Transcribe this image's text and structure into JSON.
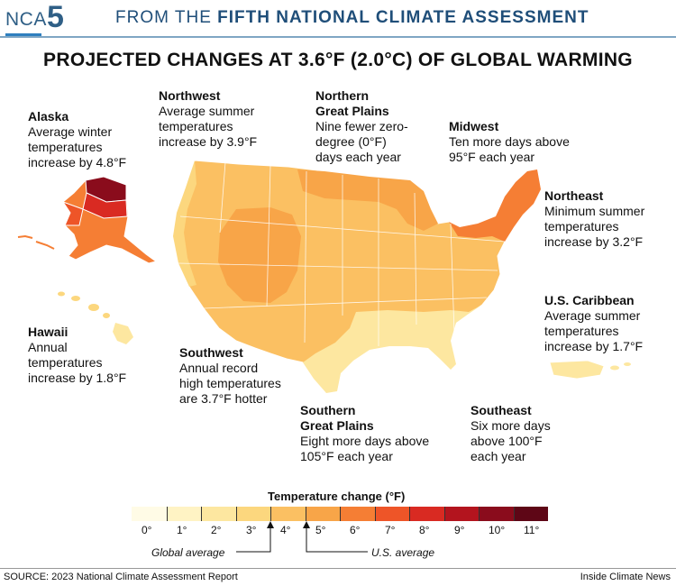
{
  "header": {
    "logo_prefix": "NCA",
    "logo_number": "5",
    "text_prefix": "FROM THE",
    "text_bold": "FIFTH NATIONAL CLIMATE ASSESSMENT"
  },
  "title": "PROJECTED CHANGES AT 3.6°F (2.0°C) OF GLOBAL WARMING",
  "regions": {
    "alaska": {
      "name": "Alaska",
      "desc": "Average winter\ntemperatures\nincrease by 4.8°F"
    },
    "northwest": {
      "name": "Northwest",
      "desc": "Average summer\ntemperatures\nincrease by 3.9°F"
    },
    "northern_great_plains": {
      "name": "Northern\nGreat Plains",
      "desc": "Nine fewer zero-\ndegree (0°F)\ndays each year"
    },
    "midwest": {
      "name": "Midwest",
      "desc": "Ten more days above\n95°F each year"
    },
    "northeast": {
      "name": "Northeast",
      "desc": "Minimum summer\ntemperatures\nincrease by 3.2°F"
    },
    "us_caribbean": {
      "name": "U.S. Caribbean",
      "desc": "Average summer\ntemperatures\nincrease by 1.7°F"
    },
    "hawaii": {
      "name": "Hawaii",
      "desc": "Annual\ntemperatures\nincrease by 1.8°F"
    },
    "southwest": {
      "name": "Southwest",
      "desc": "Annual record\nhigh temperatures\nare 3.7°F hotter"
    },
    "southern_great_plains": {
      "name": "Southern\nGreat Plains",
      "desc": "Eight more days above\n105°F each year"
    },
    "southeast": {
      "name": "Southeast",
      "desc": "Six more days\nabove 100°F\neach year"
    }
  },
  "legend": {
    "title": "Temperature change (°F)",
    "ticks": [
      "0°",
      "1°",
      "2°",
      "3°",
      "4°",
      "5°",
      "6°",
      "7°",
      "8°",
      "9°",
      "10°",
      "11°"
    ],
    "colors": [
      "#fffbe6",
      "#fff3c4",
      "#fde7a0",
      "#fcd77e",
      "#fbc062",
      "#f8a548",
      "#f57e34",
      "#ee5528",
      "#d92a22",
      "#b3141e",
      "#8a0c1c",
      "#5e0616"
    ],
    "global_average_label": "Global average",
    "us_average_label": "U.S. average"
  },
  "map_colors": {
    "light": "#fde7a0",
    "pale": "#fcd77e",
    "mid": "#fbc062",
    "orange": "#f8a548",
    "deep": "#f57e34",
    "red": "#ee5528",
    "dark": "#b3141e",
    "border": "#ffffff"
  },
  "footer": {
    "source": "SOURCE: 2023 National Climate Assessment Report",
    "credit": "Inside Climate News"
  }
}
